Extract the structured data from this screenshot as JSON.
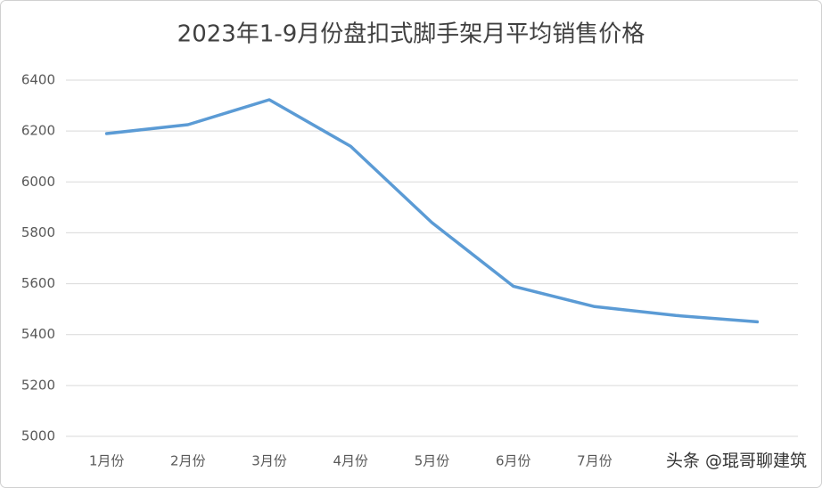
{
  "chart_data": {
    "type": "line",
    "title": "2023年1-9月份盘扣式脚手架月平均销售价格",
    "categories": [
      "1月份",
      "2月份",
      "3月份",
      "4月份",
      "5月份",
      "6月份",
      "7月份",
      null,
      null
    ],
    "values": [
      6190,
      6225,
      6323,
      6140,
      5840,
      5590,
      5510,
      5475,
      5450
    ],
    "color": "#5b9bd5",
    "ylim": [
      5000,
      6400
    ],
    "yticks": [
      5000,
      5200,
      5400,
      5600,
      5800,
      6000,
      6200,
      6400
    ],
    "grid": true,
    "annotation": "头条 @琨哥聊建筑"
  }
}
